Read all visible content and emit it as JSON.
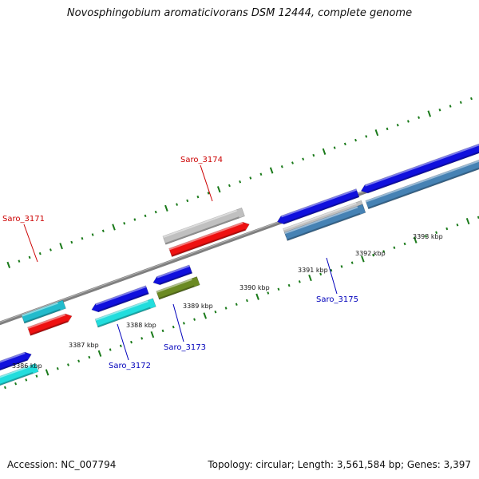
{
  "title": "Novosphingobium aromaticivorans DSM 12444, complete genome",
  "accession_text": "Accession: NC_007794",
  "summary_text": "Topology: circular; Length: 3,561,584 bp; Genes: 3,397",
  "colors": {
    "backbone": "#7f7f7f",
    "tick": "#1a7a1a",
    "label_forward": "#cc0000",
    "label_reverse": "#0000bb",
    "gene_blue": "#1010dd",
    "gene_cyan": "#22dddd",
    "gene_teal": "#22bbcc",
    "gene_red": "#ee1111",
    "gene_gray": "#c0c0c0",
    "gene_olive": "#6b8a23",
    "gene_steel": "#4682b4"
  },
  "kbp_labels": [
    "3386 kbp",
    "3387 kbp",
    "3388 kbp",
    "3389 kbp",
    "3390 kbp",
    "3391 kbp",
    "3392 kbp",
    "3393 kbp"
  ],
  "gene_labels": [
    {
      "name": "Saro_3171",
      "strand": "forward"
    },
    {
      "name": "Saro_3174",
      "strand": "forward"
    },
    {
      "name": "Saro_3172",
      "strand": "reverse"
    },
    {
      "name": "Saro_3173",
      "strand": "reverse"
    },
    {
      "name": "Saro_3175",
      "strand": "reverse"
    }
  ]
}
